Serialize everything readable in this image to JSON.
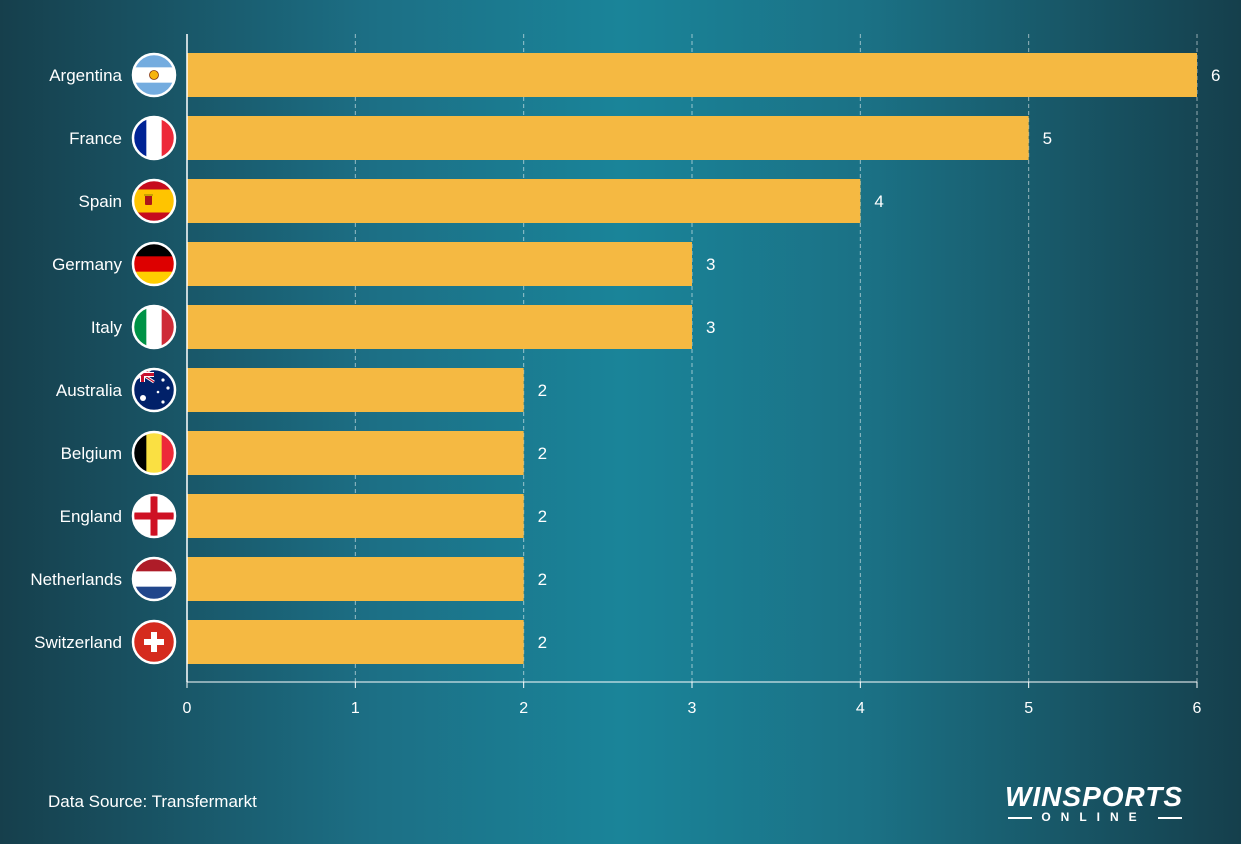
{
  "chart_data": {
    "type": "bar",
    "orientation": "horizontal",
    "categories": [
      "Argentina",
      "France",
      "Spain",
      "Germany",
      "Italy",
      "Australia",
      "Belgium",
      "England",
      "Netherlands",
      "Switzerland"
    ],
    "values": [
      6,
      5,
      4,
      3,
      3,
      2,
      2,
      2,
      2,
      2
    ],
    "xlim": [
      0,
      6
    ],
    "xticks": [
      "0",
      "1",
      "2",
      "3",
      "4",
      "5",
      "6"
    ],
    "grid": "vertical dashed",
    "bar_color": "#f5b942",
    "flags": [
      "argentina-flag-icon",
      "france-flag-icon",
      "spain-flag-icon",
      "germany-flag-icon",
      "italy-flag-icon",
      "australia-flag-icon",
      "belgium-flag-icon",
      "england-flag-icon",
      "netherlands-flag-icon",
      "switzerland-flag-icon"
    ]
  },
  "footer": {
    "source": "Data Source: Transfermarkt"
  },
  "logo": {
    "main": "WINSPORTS",
    "sub": "ONLINE"
  }
}
